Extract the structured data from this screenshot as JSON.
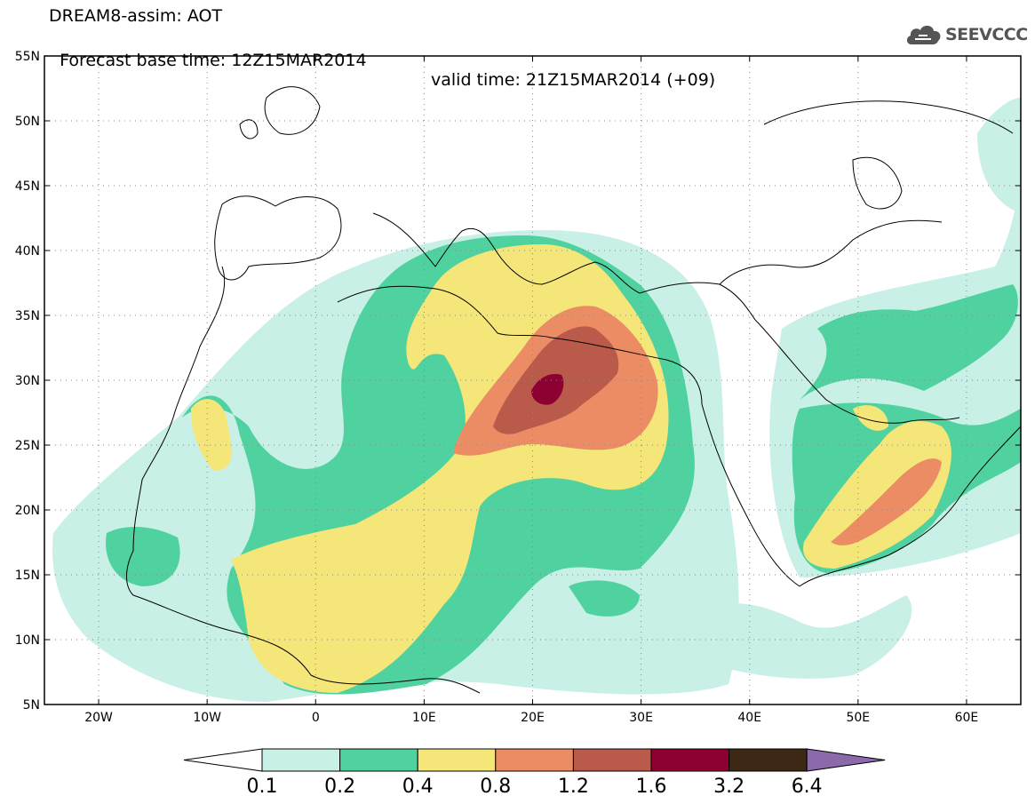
{
  "header": {
    "title_line1": "DREAM8-assim: AOT",
    "base_time": "Forecast base time: 12Z15MAR2014",
    "valid_time": "valid time: 21Z15MAR2014 (+09)"
  },
  "logo": {
    "text": "SEEVCCC",
    "icon": "cloud-icon"
  },
  "map": {
    "lon_range": [
      -25,
      65
    ],
    "lat_range": [
      5,
      55
    ],
    "lon_ticks": [
      "20W",
      "10W",
      "0",
      "10E",
      "20E",
      "30E",
      "40E",
      "50E",
      "60E"
    ],
    "lat_ticks": [
      "5N",
      "10N",
      "15N",
      "20N",
      "25N",
      "30N",
      "35N",
      "40N",
      "45N",
      "50N",
      "55N"
    ],
    "grid": "dotted"
  },
  "colorbar": {
    "labels": [
      "0.1",
      "0.2",
      "0.4",
      "0.8",
      "1.2",
      "1.6",
      "3.2",
      "6.4"
    ],
    "colors": [
      "#ffffff",
      "#c8f0e6",
      "#50d2a0",
      "#f5e67a",
      "#eb8c64",
      "#b95a4b",
      "#8c0032",
      "#3c2814",
      "#8c69aa"
    ]
  }
}
